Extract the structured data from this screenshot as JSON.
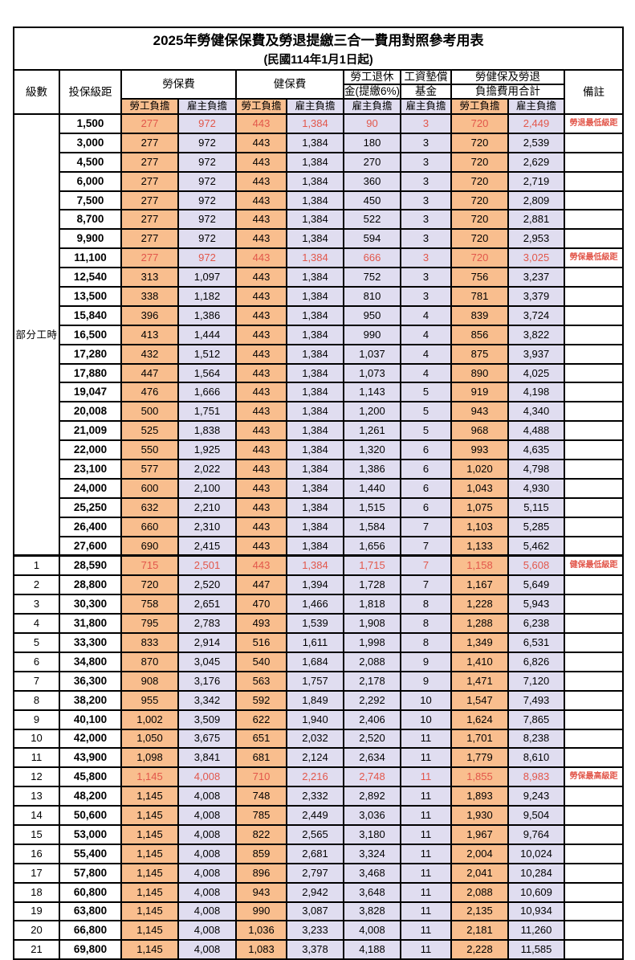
{
  "title": "2025年勞健保保費及勞退提繳三合一費用對照參考用表",
  "subtitle": "(民國114年1月1日起)",
  "colors": {
    "employee_share_bg": "#f9be8e",
    "employer_share_bg": "#e0ddf0",
    "highlight_red": "#e2574b",
    "border": "#000000"
  },
  "headers": {
    "level": "級數",
    "bracket": "投保級距",
    "labor_ins": "勞保費",
    "health_ins": "健保費",
    "pension_line1": "勞工退休",
    "pension_line2": "金(提繳6%)",
    "wage_fund_line1": "工資墊償",
    "wage_fund_line2": "基金",
    "total_line1": "勞健保及勞退",
    "total_line2": "負擔費用合計",
    "note": "備註",
    "employee_share": "勞工負擔",
    "employer_share": "雇主負擔"
  },
  "table": {
    "part_time_label": "部分工時",
    "part_time_rowspan": 23,
    "rows": [
      {
        "lv": "",
        "amt": "1,500",
        "v": [
          "277",
          "972",
          "443",
          "1,384",
          "90",
          "3",
          "720",
          "2,449"
        ],
        "note": "勞退最低級距",
        "red": true
      },
      {
        "lv": "",
        "amt": "3,000",
        "v": [
          "277",
          "972",
          "443",
          "1,384",
          "180",
          "3",
          "720",
          "2,539"
        ],
        "note": "",
        "red": false
      },
      {
        "lv": "",
        "amt": "4,500",
        "v": [
          "277",
          "972",
          "443",
          "1,384",
          "270",
          "3",
          "720",
          "2,629"
        ],
        "note": "",
        "red": false
      },
      {
        "lv": "",
        "amt": "6,000",
        "v": [
          "277",
          "972",
          "443",
          "1,384",
          "360",
          "3",
          "720",
          "2,719"
        ],
        "note": "",
        "red": false
      },
      {
        "lv": "",
        "amt": "7,500",
        "v": [
          "277",
          "972",
          "443",
          "1,384",
          "450",
          "3",
          "720",
          "2,809"
        ],
        "note": "",
        "red": false
      },
      {
        "lv": "",
        "amt": "8,700",
        "v": [
          "277",
          "972",
          "443",
          "1,384",
          "522",
          "3",
          "720",
          "2,881"
        ],
        "note": "",
        "red": false
      },
      {
        "lv": "",
        "amt": "9,900",
        "v": [
          "277",
          "972",
          "443",
          "1,384",
          "594",
          "3",
          "720",
          "2,953"
        ],
        "note": "",
        "red": false
      },
      {
        "lv": "",
        "amt": "11,100",
        "v": [
          "277",
          "972",
          "443",
          "1,384",
          "666",
          "3",
          "720",
          "3,025"
        ],
        "note": "勞保最低級距",
        "red": true
      },
      {
        "lv": "",
        "amt": "12,540",
        "v": [
          "313",
          "1,097",
          "443",
          "1,384",
          "752",
          "3",
          "756",
          "3,237"
        ],
        "note": "",
        "red": false
      },
      {
        "lv": "",
        "amt": "13,500",
        "v": [
          "338",
          "1,182",
          "443",
          "1,384",
          "810",
          "3",
          "781",
          "3,379"
        ],
        "note": "",
        "red": false
      },
      {
        "lv": "",
        "amt": "15,840",
        "v": [
          "396",
          "1,386",
          "443",
          "1,384",
          "950",
          "4",
          "839",
          "3,724"
        ],
        "note": "",
        "red": false
      },
      {
        "lv": "",
        "amt": "16,500",
        "v": [
          "413",
          "1,444",
          "443",
          "1,384",
          "990",
          "4",
          "856",
          "3,822"
        ],
        "note": "",
        "red": false
      },
      {
        "lv": "",
        "amt": "17,280",
        "v": [
          "432",
          "1,512",
          "443",
          "1,384",
          "1,037",
          "4",
          "875",
          "3,937"
        ],
        "note": "",
        "red": false
      },
      {
        "lv": "",
        "amt": "17,880",
        "v": [
          "447",
          "1,564",
          "443",
          "1,384",
          "1,073",
          "4",
          "890",
          "4,025"
        ],
        "note": "",
        "red": false
      },
      {
        "lv": "",
        "amt": "19,047",
        "v": [
          "476",
          "1,666",
          "443",
          "1,384",
          "1,143",
          "5",
          "919",
          "4,198"
        ],
        "note": "",
        "red": false
      },
      {
        "lv": "",
        "amt": "20,008",
        "v": [
          "500",
          "1,751",
          "443",
          "1,384",
          "1,200",
          "5",
          "943",
          "4,340"
        ],
        "note": "",
        "red": false
      },
      {
        "lv": "",
        "amt": "21,009",
        "v": [
          "525",
          "1,838",
          "443",
          "1,384",
          "1,261",
          "5",
          "968",
          "4,488"
        ],
        "note": "",
        "red": false
      },
      {
        "lv": "",
        "amt": "22,000",
        "v": [
          "550",
          "1,925",
          "443",
          "1,384",
          "1,320",
          "6",
          "993",
          "4,635"
        ],
        "note": "",
        "red": false
      },
      {
        "lv": "",
        "amt": "23,100",
        "v": [
          "577",
          "2,022",
          "443",
          "1,384",
          "1,386",
          "6",
          "1,020",
          "4,798"
        ],
        "note": "",
        "red": false
      },
      {
        "lv": "",
        "amt": "24,000",
        "v": [
          "600",
          "2,100",
          "443",
          "1,384",
          "1,440",
          "6",
          "1,043",
          "4,930"
        ],
        "note": "",
        "red": false
      },
      {
        "lv": "",
        "amt": "25,250",
        "v": [
          "632",
          "2,210",
          "443",
          "1,384",
          "1,515",
          "6",
          "1,075",
          "5,115"
        ],
        "note": "",
        "red": false
      },
      {
        "lv": "",
        "amt": "26,400",
        "v": [
          "660",
          "2,310",
          "443",
          "1,384",
          "1,584",
          "7",
          "1,103",
          "5,285"
        ],
        "note": "",
        "red": false
      },
      {
        "lv": "",
        "amt": "27,600",
        "v": [
          "690",
          "2,415",
          "443",
          "1,384",
          "1,656",
          "7",
          "1,133",
          "5,462"
        ],
        "note": "",
        "red": false
      },
      {
        "lv": "1",
        "amt": "28,590",
        "v": [
          "715",
          "2,501",
          "443",
          "1,384",
          "1,715",
          "7",
          "1,158",
          "5,608"
        ],
        "note": "健保最低級距",
        "red": true,
        "section_start": true
      },
      {
        "lv": "2",
        "amt": "28,800",
        "v": [
          "720",
          "2,520",
          "447",
          "1,394",
          "1,728",
          "7",
          "1,167",
          "5,649"
        ],
        "note": "",
        "red": false
      },
      {
        "lv": "3",
        "amt": "30,300",
        "v": [
          "758",
          "2,651",
          "470",
          "1,466",
          "1,818",
          "8",
          "1,228",
          "5,943"
        ],
        "note": "",
        "red": false
      },
      {
        "lv": "4",
        "amt": "31,800",
        "v": [
          "795",
          "2,783",
          "493",
          "1,539",
          "1,908",
          "8",
          "1,288",
          "6,238"
        ],
        "note": "",
        "red": false
      },
      {
        "lv": "5",
        "amt": "33,300",
        "v": [
          "833",
          "2,914",
          "516",
          "1,611",
          "1,998",
          "8",
          "1,349",
          "6,531"
        ],
        "note": "",
        "red": false
      },
      {
        "lv": "6",
        "amt": "34,800",
        "v": [
          "870",
          "3,045",
          "540",
          "1,684",
          "2,088",
          "9",
          "1,410",
          "6,826"
        ],
        "note": "",
        "red": false
      },
      {
        "lv": "7",
        "amt": "36,300",
        "v": [
          "908",
          "3,176",
          "563",
          "1,757",
          "2,178",
          "9",
          "1,471",
          "7,120"
        ],
        "note": "",
        "red": false
      },
      {
        "lv": "8",
        "amt": "38,200",
        "v": [
          "955",
          "3,342",
          "592",
          "1,849",
          "2,292",
          "10",
          "1,547",
          "7,493"
        ],
        "note": "",
        "red": false
      },
      {
        "lv": "9",
        "amt": "40,100",
        "v": [
          "1,002",
          "3,509",
          "622",
          "1,940",
          "2,406",
          "10",
          "1,624",
          "7,865"
        ],
        "note": "",
        "red": false
      },
      {
        "lv": "10",
        "amt": "42,000",
        "v": [
          "1,050",
          "3,675",
          "651",
          "2,032",
          "2,520",
          "11",
          "1,701",
          "8,238"
        ],
        "note": "",
        "red": false
      },
      {
        "lv": "11",
        "amt": "43,900",
        "v": [
          "1,098",
          "3,841",
          "681",
          "2,124",
          "2,634",
          "11",
          "1,779",
          "8,610"
        ],
        "note": "",
        "red": false
      },
      {
        "lv": "12",
        "amt": "45,800",
        "v": [
          "1,145",
          "4,008",
          "710",
          "2,216",
          "2,748",
          "11",
          "1,855",
          "8,983"
        ],
        "note": "勞保最高級距",
        "red": true
      },
      {
        "lv": "13",
        "amt": "48,200",
        "v": [
          "1,145",
          "4,008",
          "748",
          "2,332",
          "2,892",
          "11",
          "1,893",
          "9,243"
        ],
        "note": "",
        "red": false
      },
      {
        "lv": "14",
        "amt": "50,600",
        "v": [
          "1,145",
          "4,008",
          "785",
          "2,449",
          "3,036",
          "11",
          "1,930",
          "9,504"
        ],
        "note": "",
        "red": false
      },
      {
        "lv": "15",
        "amt": "53,000",
        "v": [
          "1,145",
          "4,008",
          "822",
          "2,565",
          "3,180",
          "11",
          "1,967",
          "9,764"
        ],
        "note": "",
        "red": false
      },
      {
        "lv": "16",
        "amt": "55,400",
        "v": [
          "1,145",
          "4,008",
          "859",
          "2,681",
          "3,324",
          "11",
          "2,004",
          "10,024"
        ],
        "note": "",
        "red": false
      },
      {
        "lv": "17",
        "amt": "57,800",
        "v": [
          "1,145",
          "4,008",
          "896",
          "2,797",
          "3,468",
          "11",
          "2,041",
          "10,284"
        ],
        "note": "",
        "red": false
      },
      {
        "lv": "18",
        "amt": "60,800",
        "v": [
          "1,145",
          "4,008",
          "943",
          "2,942",
          "3,648",
          "11",
          "2,088",
          "10,609"
        ],
        "note": "",
        "red": false
      },
      {
        "lv": "19",
        "amt": "63,800",
        "v": [
          "1,145",
          "4,008",
          "990",
          "3,087",
          "3,828",
          "11",
          "2,135",
          "10,934"
        ],
        "note": "",
        "red": false
      },
      {
        "lv": "20",
        "amt": "66,800",
        "v": [
          "1,145",
          "4,008",
          "1,036",
          "3,233",
          "4,008",
          "11",
          "2,181",
          "11,260"
        ],
        "note": "",
        "red": false
      },
      {
        "lv": "21",
        "amt": "69,800",
        "v": [
          "1,145",
          "4,008",
          "1,083",
          "3,378",
          "4,188",
          "11",
          "2,228",
          "11,585"
        ],
        "note": "",
        "red": false
      }
    ]
  }
}
